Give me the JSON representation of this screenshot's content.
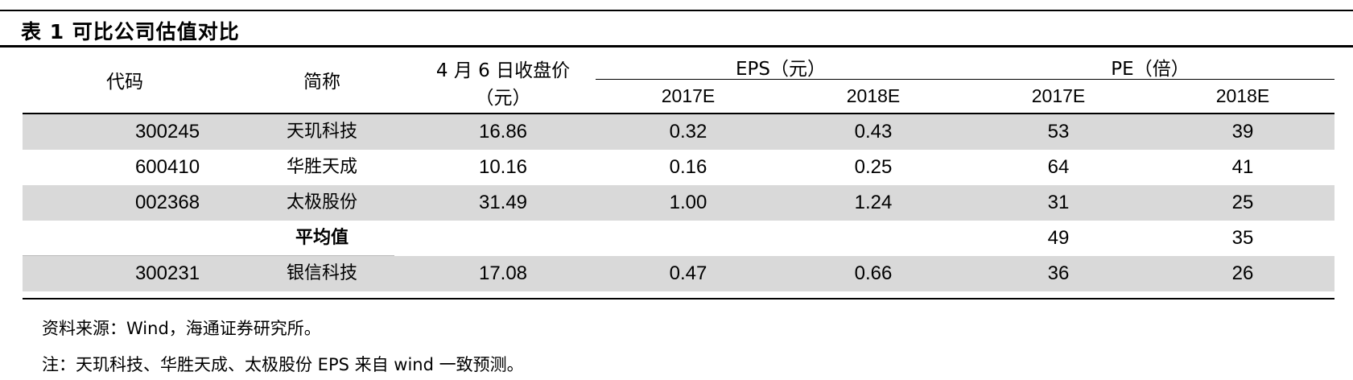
{
  "title": "表 1 可比公司估值对比",
  "headers": {
    "code": "代码",
    "name": "简称",
    "price_line1": "4 月 6 日收盘价",
    "price_line2": "（元）",
    "eps_group": "EPS（元）",
    "pe_group": "PE（倍）",
    "eps_2017": "2017E",
    "eps_2018": "2018E",
    "pe_2017": "2017E",
    "pe_2018": "2018E"
  },
  "rows": [
    {
      "code": "300245",
      "name": "天玑科技",
      "price": "16.86",
      "eps_2017": "0.32",
      "eps_2018": "0.43",
      "pe_2017": "53",
      "pe_2018": "39"
    },
    {
      "code": "600410",
      "name": "华胜天成",
      "price": "10.16",
      "eps_2017": "0.16",
      "eps_2018": "0.25",
      "pe_2017": "64",
      "pe_2018": "41"
    },
    {
      "code": "002368",
      "name": "太极股份",
      "price": "31.49",
      "eps_2017": "1.00",
      "eps_2018": "1.24",
      "pe_2017": "31",
      "pe_2018": "25"
    },
    {
      "code": "",
      "name": "平均值",
      "price": "",
      "eps_2017": "",
      "eps_2018": "",
      "pe_2017": "49",
      "pe_2018": "35"
    },
    {
      "code": "300231",
      "name": "银信科技",
      "price": "17.08",
      "eps_2017": "0.47",
      "eps_2018": "0.66",
      "pe_2017": "36",
      "pe_2018": "26"
    }
  ],
  "notes": {
    "source": "资料来源：Wind，海通证券研究所。",
    "remark": "注：天玑科技、华胜天成、太极股份 EPS 来自 wind 一致预测。"
  }
}
